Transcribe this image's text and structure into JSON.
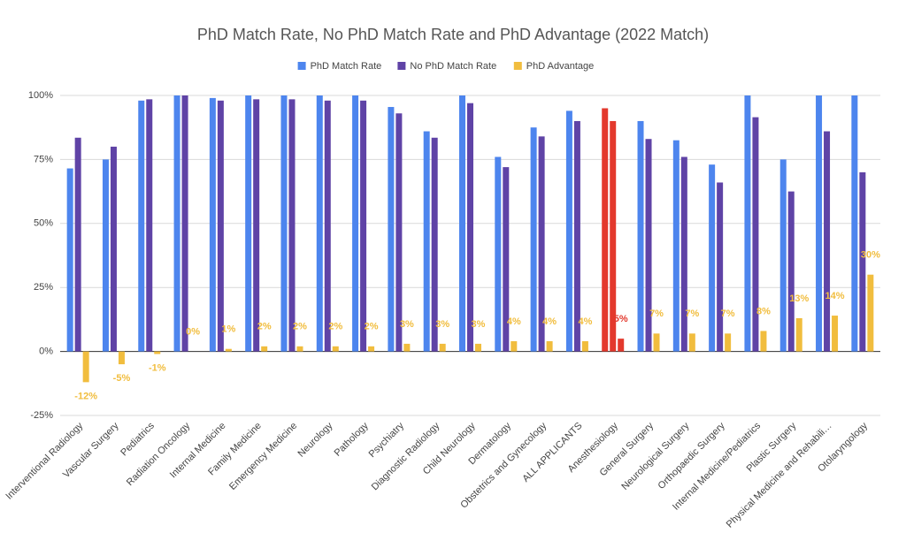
{
  "chart_data": {
    "type": "bar",
    "title": "PhD Match Rate, No PhD Match Rate and PhD Advantage (2022 Match)",
    "categories": [
      "Interventional Radiology",
      "Vascular Surgery",
      "Pediatrics",
      "Radiation Oncology",
      "Internal Medicine",
      "Family Medicine",
      "Emergency Medicine",
      "Neurology",
      "Pathology",
      "Psychiatry",
      "Diagnostic Radiology",
      "Child Neurology",
      "Dermatology",
      "Obstetrics and Gynecology",
      "ALL APPLICANTS",
      "Anesthesiology",
      "General Surgery",
      "Neurological Surgery",
      "Orthopaedic Surgery",
      "Internal Medicine/Pediatrics",
      "Plastic Surgery",
      "Physical Medicine and Rehabili…",
      "Otolaryngology"
    ],
    "series": [
      {
        "name": "PhD Match Rate",
        "color": "#4d85ee",
        "values": [
          71.5,
          75,
          98,
          100,
          99,
          100,
          100,
          100,
          100,
          95.5,
          86,
          100,
          76,
          87.5,
          94,
          95,
          90,
          82.5,
          73,
          100,
          75,
          100,
          100
        ]
      },
      {
        "name": "No PhD Match Rate",
        "color": "#5f43a6",
        "values": [
          83.5,
          80,
          98.5,
          100,
          98,
          98.5,
          98.5,
          98,
          98,
          93,
          83.5,
          97,
          72,
          84,
          90,
          90,
          83,
          76,
          66,
          91.5,
          62.5,
          86,
          70
        ]
      },
      {
        "name": "PhD Advantage",
        "color": "#f1bd3e",
        "values": [
          -12,
          -5,
          -1,
          0,
          1,
          2,
          2,
          2,
          2,
          3,
          3,
          3,
          4,
          4,
          4,
          5,
          7,
          7,
          7,
          8,
          13,
          14,
          30
        ],
        "value_labels": [
          "-12%",
          "-5%",
          "-1%",
          "0%",
          "1%",
          "2%",
          "2%",
          "2%",
          "2%",
          "3%",
          "3%",
          "3%",
          "4%",
          "4%",
          "4%",
          "5%",
          "7%",
          "7%",
          "7%",
          "8%",
          "13%",
          "14%",
          "30%"
        ]
      }
    ],
    "highlight_category": "Anesthesiology",
    "highlight_color": "#e3392d",
    "ylim": [
      -25,
      100
    ],
    "yticks": [
      {
        "value": -25,
        "label": "-25%"
      },
      {
        "value": 0,
        "label": "0%"
      },
      {
        "value": 25,
        "label": "25%"
      },
      {
        "value": 50,
        "label": "50%"
      },
      {
        "value": 75,
        "label": "75%"
      },
      {
        "value": 100,
        "label": "100%"
      }
    ],
    "grid": true,
    "legend": "top"
  }
}
